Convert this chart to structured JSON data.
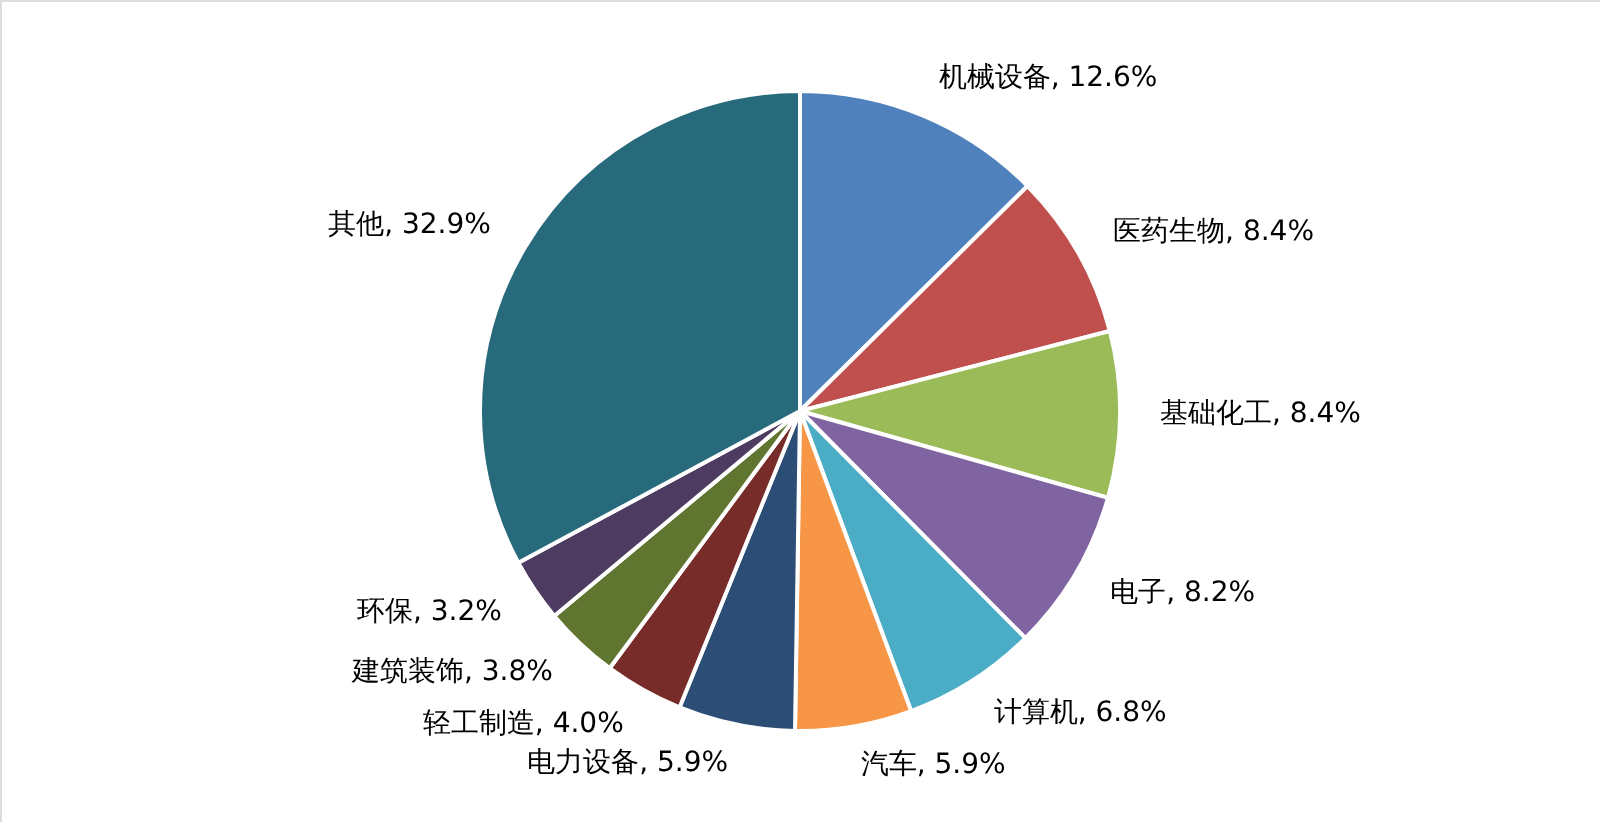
{
  "chart_data": {
    "type": "pie",
    "categories": [
      "机械设备",
      "医药生物",
      "基础化工",
      "电子",
      "计算机",
      "汽车",
      "电力设备",
      "轻工制造",
      "建筑装饰",
      "环保",
      "其他"
    ],
    "values": [
      12.6,
      8.4,
      8.4,
      8.2,
      6.8,
      5.9,
      5.9,
      4.0,
      3.8,
      3.2,
      32.9
    ],
    "colors": [
      "#4f81bd",
      "#c0504d",
      "#9bbb59",
      "#8064a2",
      "#4bacc6",
      "#f79646",
      "#2c4d75",
      "#772c2a",
      "#5f7530",
      "#4d3b62",
      "#276a7c"
    ],
    "value_labels": [
      "12.6%",
      "8.4%",
      "8.4%",
      "8.2%",
      "6.8%",
      "5.9%",
      "5.9%",
      "4.0%",
      "3.8%",
      "3.2%",
      "32.9%"
    ]
  }
}
